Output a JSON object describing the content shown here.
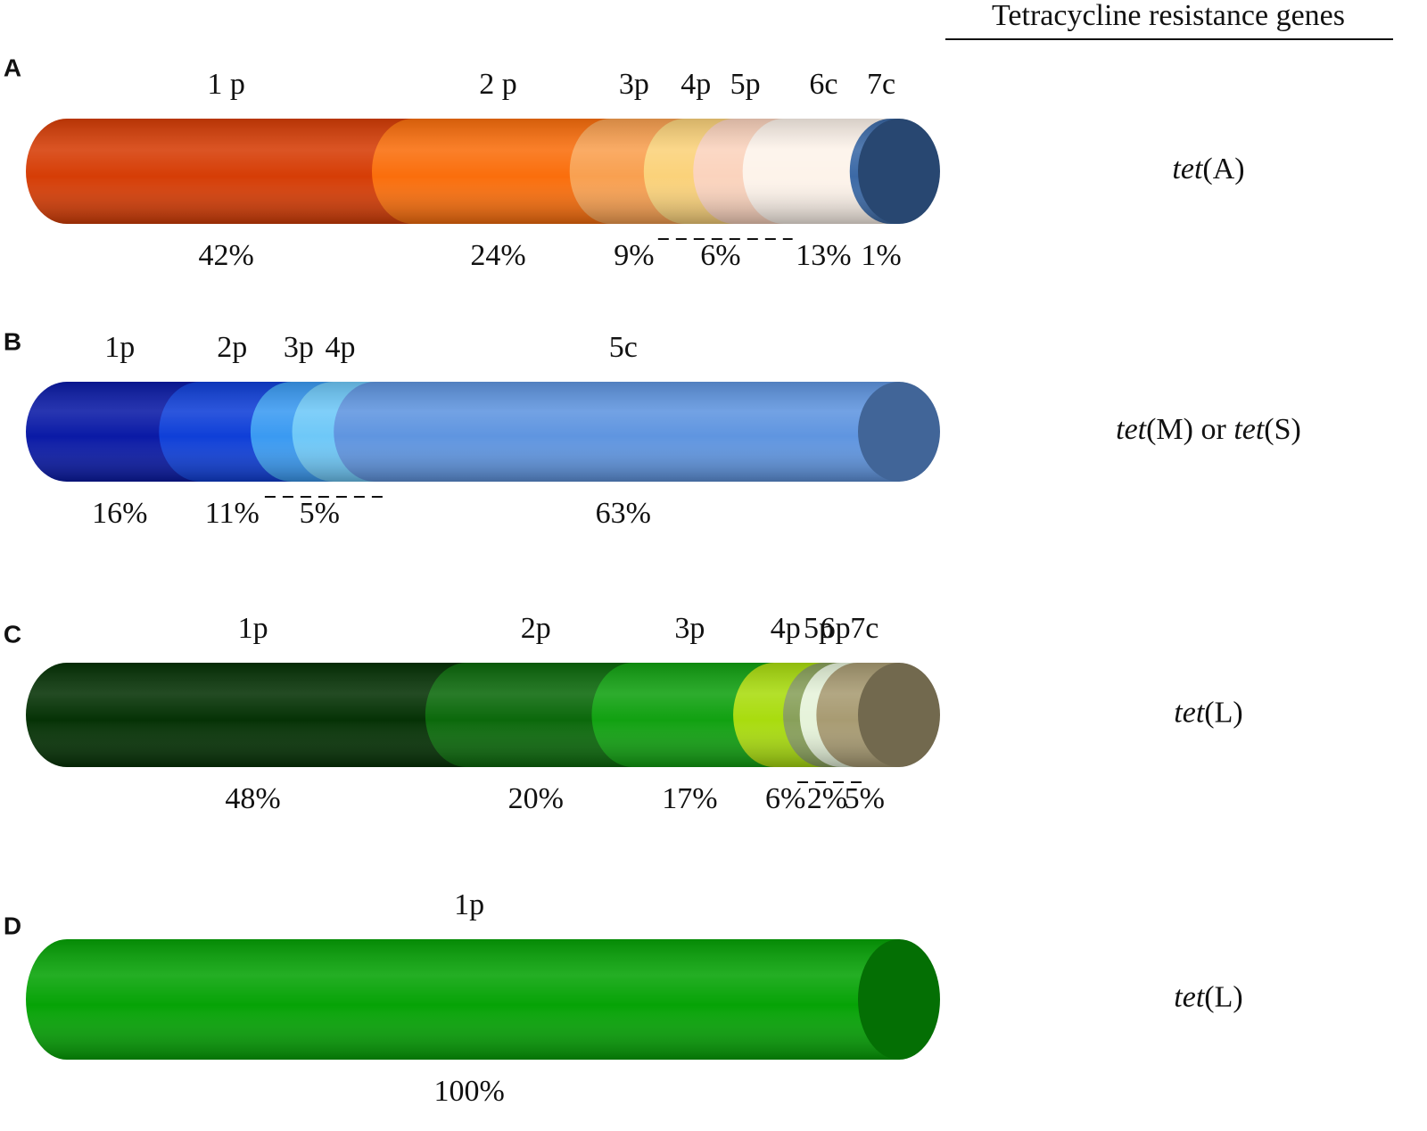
{
  "header": "Tetracycline resistance genes",
  "chart_data": [
    {
      "type": "bar",
      "panel": "A",
      "gene": [
        "tet",
        "(A)"
      ],
      "categories": [
        "1 p",
        "2 p",
        "3p",
        "4p",
        "5p",
        "6c",
        "7c"
      ],
      "values": [
        42,
        24,
        9,
        6,
        6,
        13,
        1
      ],
      "value_labels": [
        "42%",
        "24%",
        "9%",
        "6%",
        null,
        "13%",
        "1%"
      ],
      "colors": [
        "#d63d06",
        "#fa6e0c",
        "#f9a050",
        "#fbd27a",
        "#fbd3bd",
        "#fdf3ea",
        "#3b69a6"
      ]
    },
    {
      "type": "bar",
      "panel": "B",
      "gene": [
        "tet",
        "(M) or ",
        "tet",
        "(S)"
      ],
      "categories": [
        "1p",
        "2p",
        "3p",
        "4p",
        "5c"
      ],
      "values": [
        16,
        11,
        5,
        5,
        63
      ],
      "value_labels": [
        "16%",
        "11%",
        "5%",
        null,
        "63%"
      ],
      "colors": [
        "#0a1aa6",
        "#0f3fd8",
        "#3a9af2",
        "#6ec8f8",
        "#5f95e0"
      ]
    },
    {
      "type": "bar",
      "panel": "C",
      "gene": [
        "tet",
        "(L)"
      ],
      "categories": [
        "1p",
        "2p",
        "3p",
        "4p",
        "5p",
        "6p",
        "7c"
      ],
      "values": [
        48,
        20,
        17,
        6,
        2,
        2,
        5
      ],
      "value_labels": [
        "48%",
        "20%",
        "17%",
        "6%",
        "2%",
        null,
        "5%"
      ],
      "colors": [
        "#053205",
        "#0b690b",
        "#11a111",
        "#a9dc0e",
        "#88a05a",
        "#e6f3da",
        "#a89b72"
      ]
    },
    {
      "type": "bar",
      "panel": "D",
      "gene": [
        "tet",
        "(L)"
      ],
      "categories": [
        "1p"
      ],
      "values": [
        100
      ],
      "value_labels": [
        "100%"
      ],
      "colors": [
        "#06a306"
      ]
    }
  ]
}
